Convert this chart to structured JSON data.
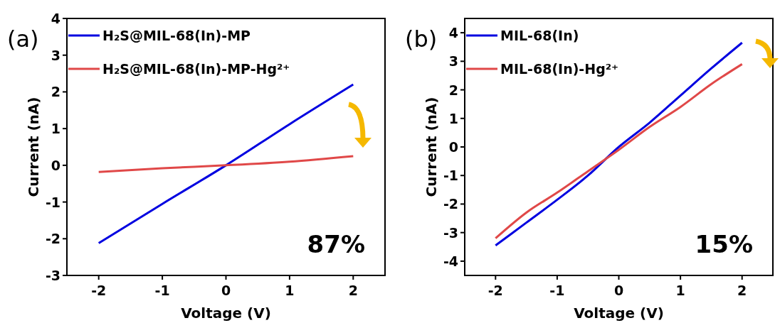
{
  "chart_data": [
    {
      "type": "line",
      "xlabel": "Voltage (V)",
      "ylabel": "Current (nA)",
      "xlim": [
        -2.5,
        2.5
      ],
      "xticks": [
        -2,
        -1,
        0,
        1,
        2
      ],
      "ylim": [
        -3,
        4
      ],
      "yticks": [
        -3,
        -2,
        -1,
        0,
        1,
        2,
        3,
        4
      ],
      "grid": false,
      "legend": "top left",
      "annotations": [
        "(a)",
        "87%"
      ],
      "series": [
        {
          "name": "H₂S@MIL-68(In)-MP",
          "color": "#0000e0",
          "x": [
            -2,
            -1,
            0,
            1,
            2
          ],
          "values": [
            -2.12,
            -1.05,
            0.0,
            1.12,
            2.2
          ]
        },
        {
          "name": "H₂S@MIL-68(In)-MP-Hg²⁺",
          "color": "#e04848",
          "x": [
            -2,
            -1,
            0,
            1,
            2
          ],
          "values": [
            -0.18,
            -0.08,
            0.0,
            0.1,
            0.25
          ]
        }
      ]
    },
    {
      "type": "line",
      "xlabel": "Voltage (V)",
      "ylabel": "Current (nA)",
      "xlim": [
        -2.5,
        2.5
      ],
      "xticks": [
        -2,
        -1,
        0,
        1,
        2
      ],
      "ylim": [
        -4.5,
        4.5
      ],
      "yticks": [
        -4,
        -3,
        -2,
        -1,
        0,
        1,
        2,
        3,
        4
      ],
      "grid": false,
      "legend": "top left",
      "annotations": [
        "(b)",
        "15%"
      ],
      "series": [
        {
          "name": "MIL-68(In)",
          "color": "#0000e0",
          "x": [
            -2,
            -1.5,
            -1,
            -0.5,
            0,
            0.5,
            1,
            1.5,
            2
          ],
          "values": [
            -3.45,
            -2.65,
            -1.85,
            -1.0,
            0.0,
            0.85,
            1.8,
            2.75,
            3.65
          ]
        },
        {
          "name": "MIL-68(In)-Hg²⁺",
          "color": "#e04848",
          "x": [
            -2,
            -1.5,
            -1,
            -0.5,
            0,
            0.5,
            1,
            1.5,
            2
          ],
          "values": [
            -3.2,
            -2.3,
            -1.6,
            -0.85,
            -0.1,
            0.7,
            1.4,
            2.2,
            2.9
          ]
        }
      ]
    }
  ]
}
